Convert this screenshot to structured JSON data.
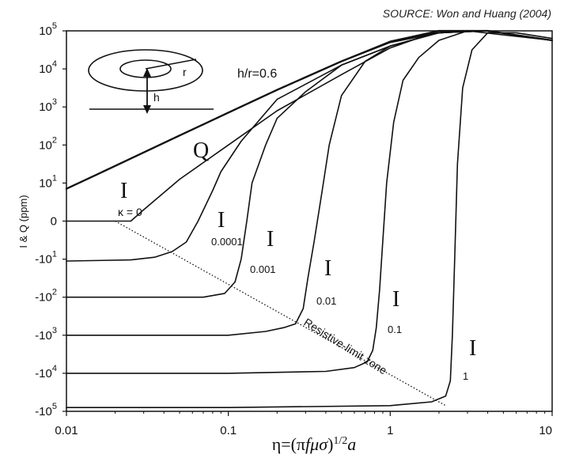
{
  "source_note": "SOURCE: Won and Huang (2004)",
  "chart_data": {
    "type": "line",
    "xscale": "log",
    "xlim": [
      0.01,
      10
    ],
    "yscale": "symmetric-log",
    "ylim": [
      "-10^5",
      "10^5"
    ],
    "grid": false,
    "xlabel": "η=(πfμσ)^{1/2}a",
    "ylabel": "I & Q (ppm)",
    "x_ticks": [
      "0.01",
      "0.1",
      "1",
      "10"
    ],
    "y_ticks": [
      {
        "value": 5,
        "base": "10",
        "exp": "5"
      },
      {
        "value": 4,
        "base": "10",
        "exp": "4"
      },
      {
        "value": 3,
        "base": "10",
        "exp": "3"
      },
      {
        "value": 2,
        "base": "10",
        "exp": "2"
      },
      {
        "value": 1,
        "base": "10",
        "exp": "1"
      },
      {
        "value": 0,
        "base": "0",
        "exp": ""
      },
      {
        "value": -1,
        "base": "-10",
        "exp": "1"
      },
      {
        "value": -2,
        "base": "-10",
        "exp": "2"
      },
      {
        "value": -3,
        "base": "-10",
        "exp": "3"
      },
      {
        "value": -4,
        "base": "-10",
        "exp": "4"
      },
      {
        "value": -5,
        "base": "-10",
        "exp": "5"
      }
    ],
    "series": [
      {
        "name": "Q",
        "values": [
          [
            0.01,
            0.85
          ],
          [
            0.02,
            1.45
          ],
          [
            0.05,
            2.25
          ],
          [
            0.1,
            2.85
          ],
          [
            0.2,
            3.45
          ],
          [
            0.5,
            4.2
          ],
          [
            1,
            4.7
          ],
          [
            2,
            4.95
          ],
          [
            3,
            5.0
          ]
        ]
      },
      {
        "name": "I κ=0",
        "values": [
          [
            0.01,
            0.85
          ],
          [
            0.02,
            1.45
          ],
          [
            0.05,
            2.25
          ],
          [
            0.1,
            2.85
          ],
          [
            0.2,
            3.45
          ],
          [
            0.5,
            4.2
          ],
          [
            1,
            4.72
          ],
          [
            2,
            5.0
          ],
          [
            4,
            5.0
          ],
          [
            10,
            4.75
          ]
        ]
      },
      {
        "name": "I κ=0",
        "values": [
          [
            0.01,
            0
          ],
          [
            0.025,
            0
          ],
          [
            0.03,
            0.3
          ],
          [
            0.05,
            1.1
          ],
          [
            0.1,
            2.0
          ],
          [
            0.2,
            2.9
          ],
          [
            0.5,
            3.85
          ],
          [
            1,
            4.55
          ],
          [
            2,
            5.0
          ],
          [
            4,
            5.0
          ],
          [
            10,
            4.75
          ]
        ]
      },
      {
        "name": "I 0.0001",
        "values": [
          [
            0.01,
            -1.05
          ],
          [
            0.025,
            -1.02
          ],
          [
            0.035,
            -0.95
          ],
          [
            0.045,
            -0.8
          ],
          [
            0.055,
            -0.55
          ],
          [
            0.065,
            0.0
          ],
          [
            0.08,
            0.8
          ],
          [
            0.09,
            1.3
          ],
          [
            0.12,
            2.1
          ],
          [
            0.2,
            3.2
          ],
          [
            0.5,
            4.1
          ],
          [
            1,
            4.6
          ],
          [
            2,
            4.95
          ],
          [
            4,
            5.0
          ],
          [
            10,
            4.75
          ]
        ]
      },
      {
        "name": "I 0.001",
        "values": [
          [
            0.01,
            -2.0
          ],
          [
            0.07,
            -2.0
          ],
          [
            0.095,
            -1.9
          ],
          [
            0.11,
            -1.6
          ],
          [
            0.12,
            -1.0
          ],
          [
            0.13,
            0.0
          ],
          [
            0.14,
            1.0
          ],
          [
            0.17,
            2.0
          ],
          [
            0.2,
            2.7
          ],
          [
            0.3,
            3.4
          ],
          [
            0.5,
            4.1
          ],
          [
            1,
            4.6
          ],
          [
            2,
            4.95
          ],
          [
            4,
            5.0
          ],
          [
            10,
            4.75
          ]
        ]
      },
      {
        "name": "I 0.01",
        "values": [
          [
            0.01,
            -3.0
          ],
          [
            0.1,
            -3.0
          ],
          [
            0.17,
            -2.9
          ],
          [
            0.22,
            -2.8
          ],
          [
            0.26,
            -2.7
          ],
          [
            0.29,
            -2.3
          ],
          [
            0.31,
            -1.5
          ],
          [
            0.34,
            -0.5
          ],
          [
            0.38,
            0.8
          ],
          [
            0.42,
            2.0
          ],
          [
            0.5,
            3.3
          ],
          [
            0.7,
            4.2
          ],
          [
            1,
            4.6
          ],
          [
            2,
            4.95
          ],
          [
            4,
            5.0
          ],
          [
            10,
            4.75
          ]
        ]
      },
      {
        "name": "I 0.1",
        "values": [
          [
            0.01,
            -4.0
          ],
          [
            0.1,
            -4.0
          ],
          [
            0.4,
            -3.95
          ],
          [
            0.6,
            -3.85
          ],
          [
            0.72,
            -3.7
          ],
          [
            0.78,
            -3.4
          ],
          [
            0.82,
            -2.8
          ],
          [
            0.86,
            -1.8
          ],
          [
            0.9,
            -0.5
          ],
          [
            0.95,
            1.0
          ],
          [
            1.05,
            2.6
          ],
          [
            1.2,
            3.7
          ],
          [
            1.5,
            4.3
          ],
          [
            2,
            4.75
          ],
          [
            3,
            5.0
          ],
          [
            10,
            4.75
          ]
        ]
      },
      {
        "name": "I 1",
        "values": [
          [
            0.01,
            -4.9
          ],
          [
            0.1,
            -4.9
          ],
          [
            1,
            -4.85
          ],
          [
            1.8,
            -4.75
          ],
          [
            2.2,
            -4.6
          ],
          [
            2.35,
            -4.2
          ],
          [
            2.42,
            -3.0
          ],
          [
            2.5,
            -1.0
          ],
          [
            2.6,
            1.5
          ],
          [
            2.8,
            3.5
          ],
          [
            3.2,
            4.5
          ],
          [
            4,
            4.95
          ],
          [
            6,
            4.95
          ],
          [
            10,
            4.8
          ]
        ]
      }
    ],
    "reference_lines": [
      {
        "name": "Resistive-limit zone",
        "style": "dotted",
        "values": [
          [
            0.02,
            0
          ],
          [
            2.2,
            -4.85
          ]
        ]
      }
    ],
    "annotations": {
      "q_label": "Q",
      "i_label": "I",
      "kappa_label": "κ = 0",
      "sub_0001": "0.0001",
      "sub_001": "0.001",
      "sub_01": "0.01",
      "sub_1": "0.1",
      "sub_one": "1",
      "ratio_label": "h/r=0.6",
      "zone_label": "Resistive-limit zone",
      "inset_r": "r",
      "inset_h": "h"
    }
  }
}
